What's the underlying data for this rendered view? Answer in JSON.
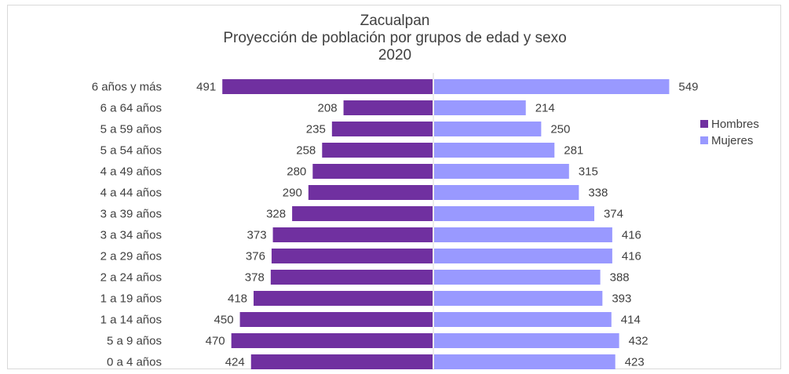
{
  "chart_data": {
    "type": "bar",
    "orientation": "horizontal",
    "style": "population-pyramid",
    "title": [
      "Zacualpan",
      "Proyección de población por grupos de edad y sexo",
      "2020"
    ],
    "categories": [
      "6  años y más",
      "6  a 64 años",
      "5  a 59 años",
      "5  a 54 años",
      "4  a 49 años",
      "4  a 44 años",
      "3  a 39 años",
      "3  a 34 años",
      "2  a 29 años",
      "2  a 24 años",
      "1  a 19 años",
      "1  a 14 años",
      "5 a 9 años",
      "0 a 4 años"
    ],
    "series": [
      {
        "name": "Hombres",
        "color": "#7030a0",
        "side": "left",
        "values": [
          491,
          208,
          235,
          258,
          280,
          290,
          328,
          373,
          376,
          378,
          418,
          450,
          470,
          424
        ]
      },
      {
        "name": "Mujeres",
        "color": "#9999ff",
        "side": "right",
        "values": [
          549,
          214,
          250,
          281,
          315,
          338,
          374,
          416,
          416,
          388,
          393,
          414,
          432,
          423
        ]
      }
    ],
    "legend_position": "right",
    "grid": false
  }
}
